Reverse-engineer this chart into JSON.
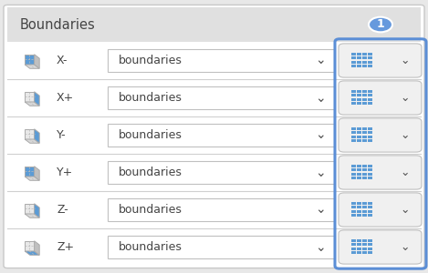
{
  "title": "Boundaries",
  "rows": [
    "X-",
    "X+",
    "Y-",
    "Y+",
    "Z-",
    "Z+"
  ],
  "dropdown_text": "boundaries",
  "bg_outer": "#e8e8e8",
  "panel_bg": "#ffffff",
  "header_bg": "#e0e0e0",
  "row_sep_color": "#d0d0d0",
  "border_color": "#c8c8c8",
  "text_color": "#444444",
  "blue_color": "#5b9bd5",
  "blue_light": "#a8c8ef",
  "highlight_border": "#5b8ed6",
  "badge_color": "#6699dd",
  "figsize": [
    4.69,
    3.0
  ],
  "dpi": 100,
  "cube_face_colors": {
    "X-": {
      "left": "#5b9bd5",
      "top": "#d8d8d8",
      "right": "#c0c0c0"
    },
    "X+": {
      "left": "#e8e8e8",
      "top": "#d8d8d8",
      "right": "#5b9bd5"
    },
    "Y-": {
      "left": "#e8e8e8",
      "top": "#d8d8d8",
      "right": "#5b9bd5"
    },
    "Y+": {
      "left": "#5b9bd5",
      "top": "#d8d8d8",
      "right": "#c0c0c0"
    },
    "Z-": {
      "left": "#e8e8e8",
      "top": "#d8d8d8",
      "right": "#5b9bd5"
    },
    "Z+": {
      "left": "#e8e8e8",
      "top": "#5b9bd5",
      "right": "#c0c0c0"
    }
  }
}
